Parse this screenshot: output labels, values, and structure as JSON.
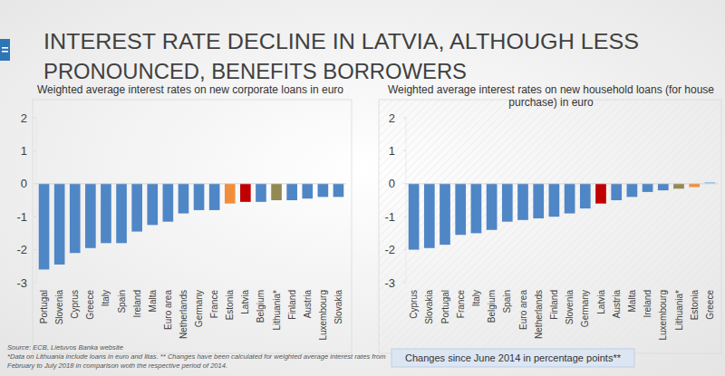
{
  "header": {
    "title": [
      "INTEREST RATE DECLINE IN LATVIA, ALTHOUGH LESS",
      "PRONOUNCED, BENEFITS BORROWERS"
    ]
  },
  "chart_data": [
    {
      "type": "bar",
      "title": "Weighted average interest rates on new corporate loans in euro",
      "categories": [
        "Portugal",
        "Slovenia",
        "Cyprus",
        "Greece",
        "Italy",
        "Spain",
        "Ireland",
        "Malta",
        "Euro area",
        "Netherlands",
        "Germany",
        "France",
        "Estonia",
        "Latvia",
        "Belgium",
        "Lithuania*",
        "Finland",
        "Austria",
        "Luxembourg",
        "Slovakia"
      ],
      "values": [
        -2.6,
        -2.45,
        -2.1,
        -1.95,
        -1.8,
        -1.8,
        -1.45,
        -1.25,
        -1.15,
        -0.9,
        -0.8,
        -0.8,
        -0.6,
        -0.55,
        -0.55,
        -0.5,
        -0.5,
        -0.45,
        -0.4,
        -0.4
      ],
      "colors": [
        "#4f86c6",
        "#4f86c6",
        "#4f86c6",
        "#4f86c6",
        "#4f86c6",
        "#4f86c6",
        "#4f86c6",
        "#4f86c6",
        "#4f86c6",
        "#4f86c6",
        "#4f86c6",
        "#4f86c6",
        "#f28e3b",
        "#c00000",
        "#4f86c6",
        "#938953",
        "#4f86c6",
        "#4f86c6",
        "#4f86c6",
        "#4f86c6"
      ],
      "ylim": [
        -3,
        2
      ],
      "yticks": [
        -3,
        -2,
        -1,
        0,
        1,
        2
      ],
      "grid": false
    },
    {
      "type": "bar",
      "title": "Weighted average interest rates on new household loans (for house purchase) in euro",
      "categories": [
        "Cyprus",
        "Slovakia",
        "Portugal",
        "France",
        "Italy",
        "Belgium",
        "Spain",
        "Euro area",
        "Netherlands",
        "Finland",
        "Slovenia",
        "Germany",
        "Latvia",
        "Austria",
        "Malta",
        "Ireland",
        "Luxembourg",
        "Lithuania*",
        "Estonia",
        "Greece"
      ],
      "values": [
        -2.0,
        -1.95,
        -1.85,
        -1.55,
        -1.5,
        -1.4,
        -1.15,
        -1.1,
        -1.05,
        -1.0,
        -0.9,
        -0.75,
        -0.6,
        -0.5,
        -0.4,
        -0.25,
        -0.2,
        -0.15,
        -0.1,
        0.05
      ],
      "colors": [
        "#4f86c6",
        "#4f86c6",
        "#4f86c6",
        "#4f86c6",
        "#4f86c6",
        "#4f86c6",
        "#4f86c6",
        "#4f86c6",
        "#4f86c6",
        "#4f86c6",
        "#4f86c6",
        "#4f86c6",
        "#c00000",
        "#4f86c6",
        "#4f86c6",
        "#4f86c6",
        "#4f86c6",
        "#938953",
        "#f28e3b",
        "#9dc3e6"
      ],
      "ylim": [
        -3,
        2
      ],
      "yticks": [
        -3,
        -2,
        -1,
        0,
        1,
        2
      ],
      "grid": false
    }
  ],
  "footer": {
    "source": "Source: ECB, Lietuvos Banka website",
    "note": "*Data on Lithuania include loans in euro and litas. ** Changes have been calculated for weighted average interest rates from February to July 2018 in comparison woth the respective period of 2014.",
    "changes_note": "Changes since June 2014 in percentage points**"
  }
}
